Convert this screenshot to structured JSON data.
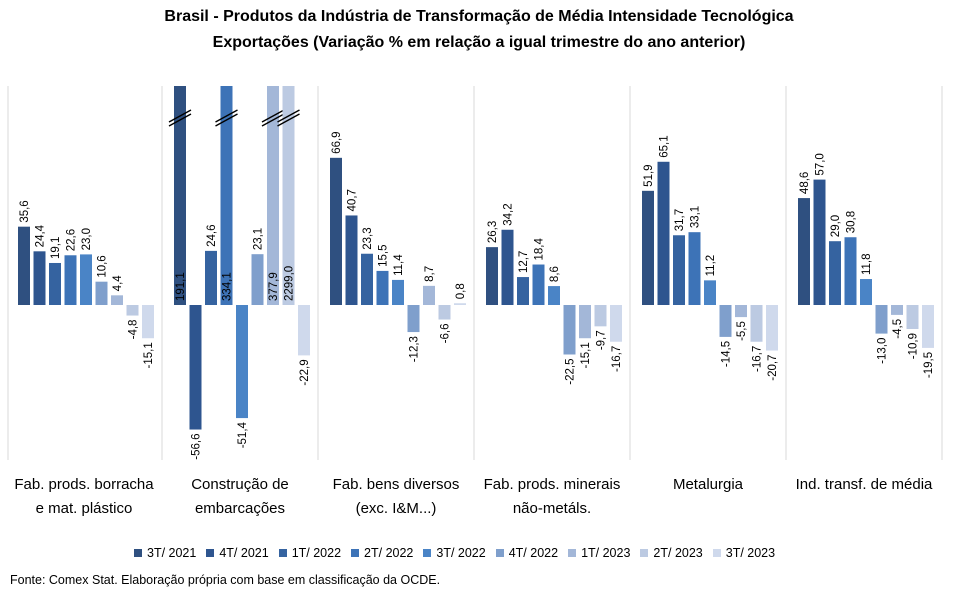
{
  "title_line1": "Brasil - Produtos da Indústria de Transformação de Média Intensidade Tecnológica",
  "title_line2": "Exportações (Variação % em relação a igual trimestre do ano anterior)",
  "source": "Fonte: Comex Stat. Elaboração própria com base em classificação da OCDE.",
  "chart_data": {
    "type": "bar",
    "title": "Brasil - Produtos da Indústria de Transformação de Média Intensidade Tecnológica / Exportações (Variação % em relação a igual trimestre do ano anterior)",
    "categories": [
      [
        "Fab. prods. borracha",
        "e mat. plástico"
      ],
      [
        "Construção de",
        "embarcações"
      ],
      [
        "Fab. bens diversos",
        "(exc. I&M...)"
      ],
      [
        "Fab. prods. minerais",
        "não-metáls."
      ],
      [
        "Metalurgia"
      ],
      [
        "Ind. transf. de média"
      ]
    ],
    "series": [
      {
        "name": "3T/ 2021",
        "color": "#2F5080"
      },
      {
        "name": "4T/ 2021",
        "color": "#2E558F"
      },
      {
        "name": "1T/ 2022",
        "color": "#3563A0"
      },
      {
        "name": "2T/ 2022",
        "color": "#3D73B7"
      },
      {
        "name": "3T/ 2022",
        "color": "#4A84C6"
      },
      {
        "name": "4T/ 2022",
        "color": "#7F9FCC"
      },
      {
        "name": "1T/ 2023",
        "color": "#A3B7D8"
      },
      {
        "name": "2T/ 2023",
        "color": "#BCCAE2"
      },
      {
        "name": "3T/ 2023",
        "color": "#CFD9EC"
      }
    ],
    "values": [
      [
        "35,6",
        "24,4",
        "19,1",
        "22,6",
        "23,0",
        "10,6",
        "4,4",
        "-4,8",
        "-15,1"
      ],
      [
        "191,1",
        "-56,6",
        "24,6",
        "334,1",
        "-51,4",
        "23,1",
        "377,9",
        "2299,0",
        "-22,9"
      ],
      [
        "66,9",
        "40,7",
        "23,3",
        "15,5",
        "11,4",
        "-12,3",
        "8,7",
        "-6,6",
        "0,8"
      ],
      [
        "26,3",
        "34,2",
        "12,7",
        "18,4",
        "8,6",
        "-22,5",
        "-15,1",
        "-9,7",
        "-16,7"
      ],
      [
        "51,9",
        "65,1",
        "31,7",
        "33,1",
        "11,2",
        "-14,5",
        "-5,5",
        "-16,7",
        "-20,7"
      ],
      [
        "48,6",
        "57,0",
        "29,0",
        "30,8",
        "11,8",
        "-13,0",
        "-4,5",
        "-10,9",
        "-19,5"
      ]
    ],
    "broken_axis_note": "Values above the visible range are truncated and marked with break symbols",
    "grid": false,
    "legend_position": "bottom"
  }
}
